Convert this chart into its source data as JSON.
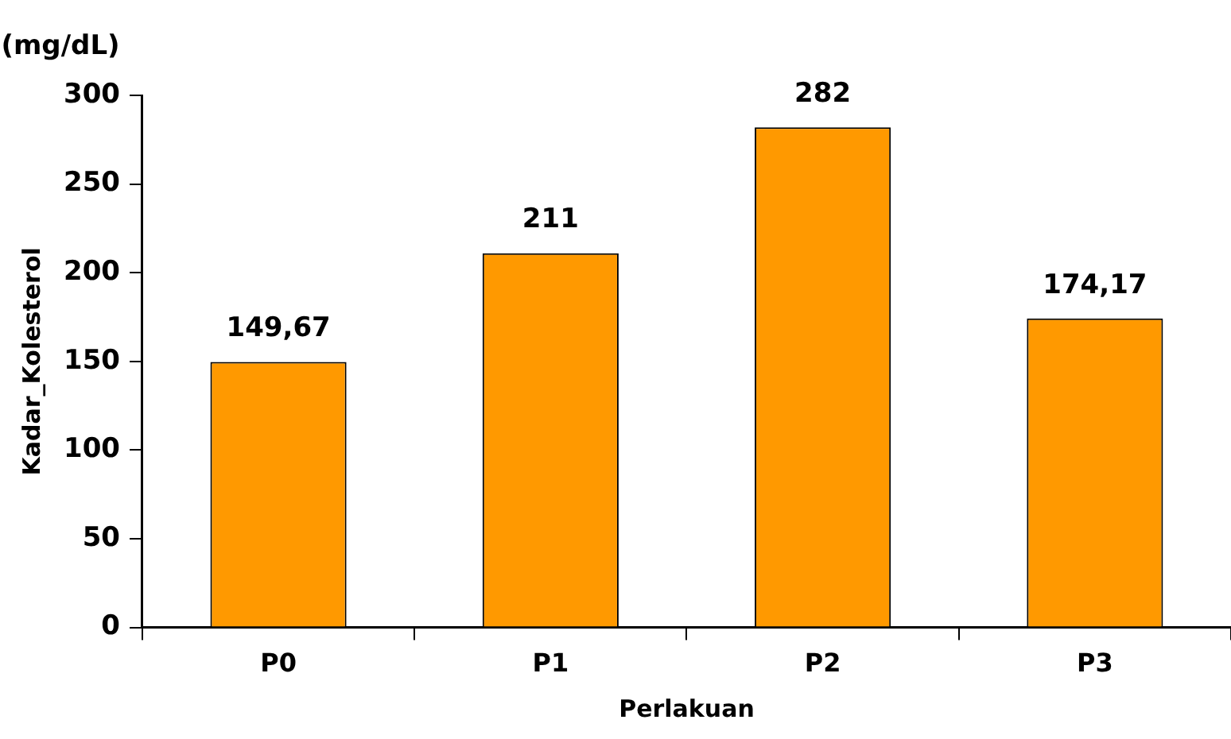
{
  "chart_data": {
    "type": "bar",
    "xlabel": "Perlakuan",
    "ylabel": "Kadar_Kolesterol",
    "annotations": [
      "(mg/dL)"
    ],
    "categories": [
      "P0",
      "P1",
      "P2",
      "P3"
    ],
    "values": [
      149.67,
      211,
      282,
      174.17
    ],
    "value_labels": [
      "149,67",
      "211",
      "282",
      "174,17"
    ],
    "color": "#ff9900",
    "ylim": [
      0,
      300
    ],
    "yticks": [
      0,
      50,
      100,
      150,
      200,
      250,
      300
    ],
    "grid": false,
    "legend": false
  }
}
